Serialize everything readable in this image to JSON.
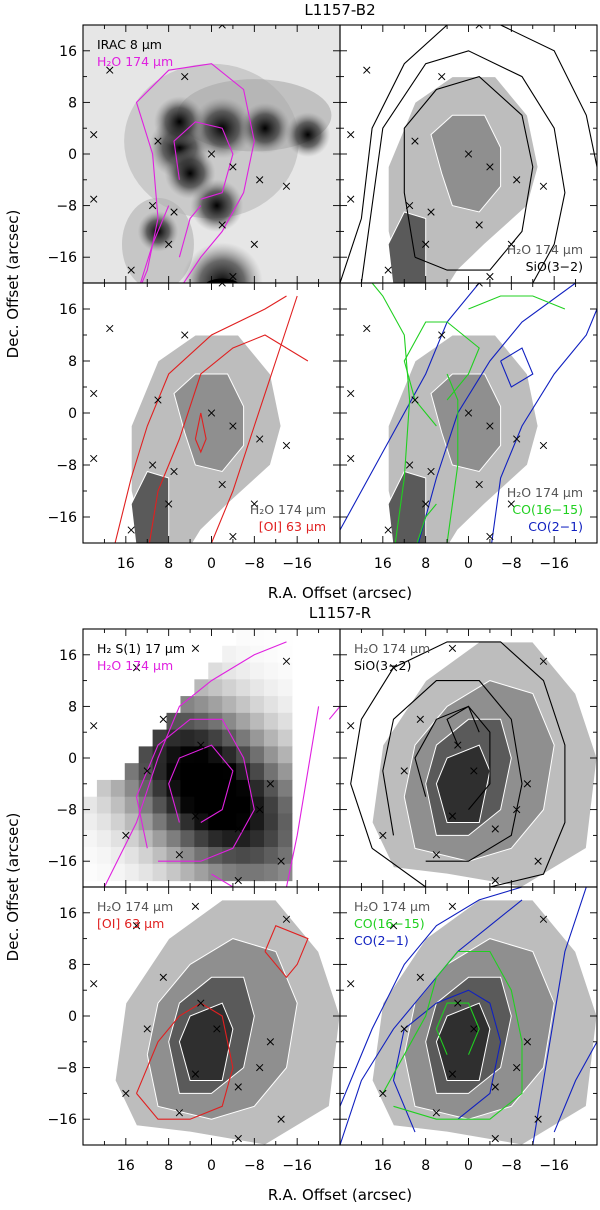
{
  "figure": {
    "xlabel": "R.A. Offset (arcsec)",
    "ylabel": "Dec. Offset (arcsec)"
  },
  "colors": {
    "water_fill_light": "#bdbdbd",
    "water_fill_mid": "#8f8f8f",
    "water_fill_dark": "#5a5a5a",
    "water_fill_darkest": "#2f2f2f",
    "h2o_contour": "#e020e0",
    "sio": "#000000",
    "oi": "#e02020",
    "co1615": "#20d020",
    "co21": "#1020c0"
  },
  "chart_data": [
    {
      "title": "L1157-B2",
      "type": "contour-map-grid",
      "xlim": [
        24,
        -24
      ],
      "ylim": [
        -20,
        20
      ],
      "xticks": [
        "16",
        "8",
        "0",
        "−8",
        "−16"
      ],
      "yticks": [
        "16",
        "8",
        "0",
        "−8",
        "−16"
      ],
      "panels": [
        {
          "position": "top-left",
          "legend": [
            {
              "text": "IRAC 8 μm",
              "color": "#000000"
            },
            {
              "text": "H₂O 174 μm",
              "color": "#e020e0"
            }
          ]
        },
        {
          "position": "top-right",
          "legend": [
            {
              "text": "H₂O 174 μm",
              "color": "#555555"
            },
            {
              "text": "SiO(3−2)",
              "color": "#000000"
            }
          ]
        },
        {
          "position": "bottom-left",
          "legend": [
            {
              "text": "H₂O 174 μm",
              "color": "#555555"
            },
            {
              "text": "[OI] 63 μm",
              "color": "#e02020"
            }
          ]
        },
        {
          "position": "bottom-right",
          "legend": [
            {
              "text": "H₂O 174 μm",
              "color": "#555555"
            },
            {
              "text": "CO(16−15)",
              "color": "#20d020"
            },
            {
              "text": "CO(2−1)",
              "color": "#1020c0"
            }
          ]
        }
      ],
      "markers": [
        [
          -2,
          20
        ],
        [
          19,
          13
        ],
        [
          5,
          12
        ],
        [
          22,
          3
        ],
        [
          10,
          2
        ],
        [
          0,
          0
        ],
        [
          -4,
          -2
        ],
        [
          -9,
          -4
        ],
        [
          22,
          -7
        ],
        [
          -14,
          -5
        ],
        [
          7,
          -9
        ],
        [
          11,
          -8
        ],
        [
          -2,
          -11
        ],
        [
          8,
          -14
        ],
        [
          -8,
          -14
        ],
        [
          15,
          -18
        ],
        [
          -4,
          -19
        ]
      ]
    },
    {
      "title": "L1157-R",
      "type": "contour-map-grid",
      "xlim": [
        24,
        -24
      ],
      "ylim": [
        -20,
        20
      ],
      "xticks": [
        "16",
        "8",
        "0",
        "−8",
        "−16"
      ],
      "yticks": [
        "16",
        "8",
        "0",
        "−8",
        "−16"
      ],
      "panels": [
        {
          "position": "top-left",
          "legend": [
            {
              "text": "H₂ S(1) 17 μm",
              "color": "#000000"
            },
            {
              "text": "H₂O 174 μm",
              "color": "#e020e0"
            }
          ]
        },
        {
          "position": "top-right",
          "legend": [
            {
              "text": "H₂O 174 μm",
              "color": "#555555"
            },
            {
              "text": "SiO(3−2)",
              "color": "#000000"
            }
          ]
        },
        {
          "position": "bottom-left",
          "legend": [
            {
              "text": "H₂O 174 μm",
              "color": "#555555"
            },
            {
              "text": "[OI] 63 μm",
              "color": "#e02020"
            }
          ]
        },
        {
          "position": "bottom-right",
          "legend": [
            {
              "text": "H₂O 174 μm",
              "color": "#555555"
            },
            {
              "text": "CO(16−15)",
              "color": "#20d020"
            },
            {
              "text": "CO(2−1)",
              "color": "#1020c0"
            }
          ]
        }
      ],
      "markers": [
        [
          3,
          17
        ],
        [
          14,
          14
        ],
        [
          -14,
          15
        ],
        [
          9,
          6
        ],
        [
          22,
          5
        ],
        [
          2,
          2
        ],
        [
          -1,
          -2
        ],
        [
          12,
          -2
        ],
        [
          -11,
          -4
        ],
        [
          -9,
          -8
        ],
        [
          3,
          -9
        ],
        [
          -5,
          -11
        ],
        [
          16,
          -12
        ],
        [
          6,
          -15
        ],
        [
          -13,
          -16
        ],
        [
          -5,
          -19
        ]
      ]
    }
  ]
}
